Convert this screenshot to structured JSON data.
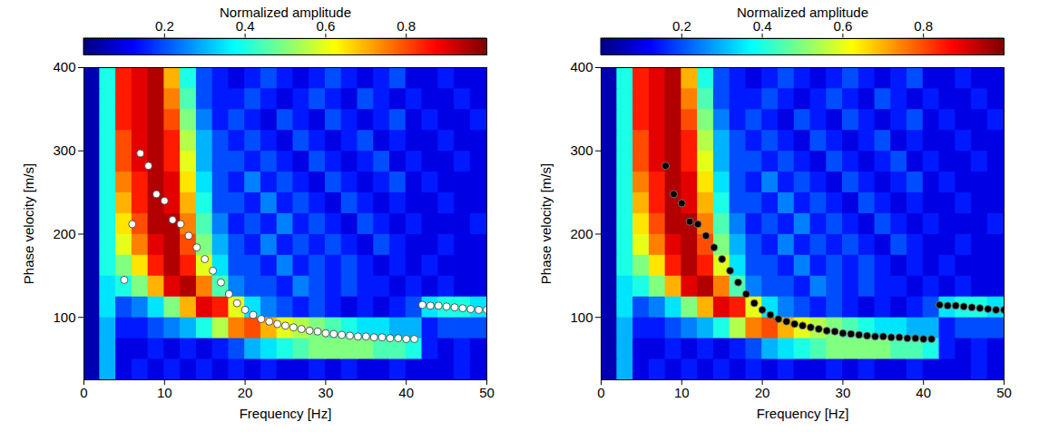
{
  "chart_data": [
    {
      "type": "heatmap",
      "x_label": "Frequency [Hz]",
      "y_label": "Phase velocity [m/s]",
      "xlim": [
        0,
        50
      ],
      "xticks": [
        0,
        10,
        20,
        30,
        40,
        50
      ],
      "ylim": [
        25,
        400
      ],
      "yticks": [
        100,
        200,
        300,
        400
      ],
      "grid": false,
      "colorbar": {
        "label": "Normalized amplitude",
        "lim": [
          0,
          1
        ],
        "ticks": [
          0.2,
          0.4,
          0.6,
          0.8
        ]
      },
      "heatmap": {
        "x_edges": [
          0,
          2,
          4,
          6,
          8,
          10,
          12,
          14,
          16,
          18,
          20,
          22,
          24,
          26,
          28,
          30,
          32,
          34,
          36,
          38,
          40,
          42,
          44,
          46,
          48,
          50
        ],
        "y_edges": [
          25,
          50,
          75,
          100,
          125,
          150,
          175,
          200,
          225,
          250,
          275,
          300,
          325,
          350,
          375,
          400
        ],
        "values": [
          [
            0.05,
            0.3,
            0.1,
            0.15,
            0.1,
            0.15,
            0.1,
            0.15,
            0.1,
            0.15,
            0.1,
            0.15,
            0.1,
            0.1,
            0.15,
            0.1,
            0.15,
            0.1,
            0.1,
            0.15,
            0.1,
            0.1,
            0.1,
            0.15,
            0.1
          ],
          [
            0.05,
            0.3,
            0.1,
            0.1,
            0.15,
            0.1,
            0.15,
            0.1,
            0.15,
            0.2,
            0.3,
            0.35,
            0.4,
            0.45,
            0.5,
            0.5,
            0.5,
            0.5,
            0.45,
            0.45,
            0.4,
            0.15,
            0.1,
            0.15,
            0.1
          ],
          [
            0.05,
            0.3,
            0.15,
            0.15,
            0.2,
            0.25,
            0.3,
            0.4,
            0.55,
            0.75,
            0.8,
            0.7,
            0.6,
            0.55,
            0.5,
            0.45,
            0.4,
            0.35,
            0.35,
            0.3,
            0.3,
            0.15,
            0.2,
            0.2,
            0.2
          ],
          [
            0.05,
            0.35,
            0.2,
            0.25,
            0.35,
            0.5,
            0.7,
            0.9,
            0.85,
            0.6,
            0.35,
            0.25,
            0.2,
            0.15,
            0.2,
            0.15,
            0.1,
            0.15,
            0.1,
            0.15,
            0.2,
            0.35,
            0.4,
            0.4,
            0.35
          ],
          [
            0.05,
            0.35,
            0.4,
            0.5,
            0.7,
            0.9,
            0.95,
            0.75,
            0.45,
            0.25,
            0.2,
            0.2,
            0.15,
            0.25,
            0.2,
            0.15,
            0.2,
            0.15,
            0.15,
            0.1,
            0.15,
            0.1,
            0.15,
            0.1,
            0.1
          ],
          [
            0.05,
            0.4,
            0.5,
            0.65,
            0.85,
            0.95,
            0.85,
            0.6,
            0.35,
            0.2,
            0.2,
            0.15,
            0.25,
            0.15,
            0.2,
            0.15,
            0.2,
            0.15,
            0.1,
            0.15,
            0.1,
            0.15,
            0.1,
            0.1,
            0.1
          ],
          [
            0.05,
            0.4,
            0.6,
            0.75,
            0.9,
            0.95,
            0.8,
            0.5,
            0.3,
            0.2,
            0.15,
            0.25,
            0.15,
            0.2,
            0.15,
            0.2,
            0.15,
            0.1,
            0.2,
            0.15,
            0.1,
            0.1,
            0.15,
            0.1,
            0.1
          ],
          [
            0.05,
            0.4,
            0.65,
            0.8,
            0.95,
            0.95,
            0.75,
            0.45,
            0.25,
            0.15,
            0.2,
            0.15,
            0.25,
            0.15,
            0.2,
            0.15,
            0.1,
            0.2,
            0.15,
            0.1,
            0.15,
            0.1,
            0.1,
            0.1,
            0.15
          ],
          [
            0.05,
            0.4,
            0.7,
            0.85,
            0.95,
            0.9,
            0.7,
            0.4,
            0.2,
            0.2,
            0.15,
            0.25,
            0.15,
            0.2,
            0.15,
            0.1,
            0.2,
            0.15,
            0.1,
            0.15,
            0.1,
            0.1,
            0.15,
            0.1,
            0.1
          ],
          [
            0.05,
            0.4,
            0.75,
            0.85,
            0.95,
            0.9,
            0.65,
            0.35,
            0.2,
            0.15,
            0.25,
            0.15,
            0.2,
            0.15,
            0.1,
            0.2,
            0.15,
            0.1,
            0.15,
            0.2,
            0.1,
            0.15,
            0.1,
            0.1,
            0.1
          ],
          [
            0.05,
            0.4,
            0.8,
            0.9,
            0.95,
            0.85,
            0.6,
            0.3,
            0.2,
            0.2,
            0.15,
            0.2,
            0.15,
            0.1,
            0.2,
            0.15,
            0.1,
            0.15,
            0.2,
            0.1,
            0.15,
            0.1,
            0.1,
            0.15,
            0.1
          ],
          [
            0.05,
            0.4,
            0.8,
            0.9,
            0.95,
            0.85,
            0.55,
            0.3,
            0.2,
            0.15,
            0.2,
            0.15,
            0.1,
            0.2,
            0.15,
            0.1,
            0.15,
            0.2,
            0.1,
            0.15,
            0.1,
            0.1,
            0.15,
            0.1,
            0.1
          ],
          [
            0.05,
            0.4,
            0.85,
            0.9,
            0.95,
            0.8,
            0.5,
            0.25,
            0.15,
            0.2,
            0.15,
            0.1,
            0.2,
            0.15,
            0.1,
            0.2,
            0.15,
            0.1,
            0.15,
            0.2,
            0.1,
            0.15,
            0.1,
            0.1,
            0.15
          ],
          [
            0.05,
            0.4,
            0.85,
            0.9,
            0.95,
            0.75,
            0.45,
            0.2,
            0.15,
            0.15,
            0.2,
            0.15,
            0.1,
            0.15,
            0.2,
            0.15,
            0.1,
            0.2,
            0.15,
            0.1,
            0.15,
            0.1,
            0.1,
            0.15,
            0.1
          ],
          [
            0.05,
            0.4,
            0.85,
            0.9,
            0.95,
            0.7,
            0.4,
            0.2,
            0.15,
            0.1,
            0.15,
            0.2,
            0.15,
            0.1,
            0.15,
            0.2,
            0.15,
            0.1,
            0.15,
            0.2,
            0.1,
            0.1,
            0.15,
            0.1,
            0.1
          ]
        ]
      },
      "series": [
        {
          "type": "scatter",
          "color": "#ffffff",
          "marker": "circle",
          "x": [
            5,
            6,
            7,
            8,
            9,
            10,
            11,
            12,
            13,
            14,
            15,
            16,
            17,
            18,
            19,
            20,
            21,
            22,
            23,
            24,
            25,
            26,
            27,
            28,
            29,
            30,
            31,
            32,
            33,
            34,
            35,
            36,
            37,
            38,
            39,
            40,
            41,
            42,
            43,
            44,
            45,
            46,
            47,
            48,
            49,
            50
          ],
          "values": [
            145,
            212,
            297,
            282,
            248,
            240,
            217,
            212,
            198,
            184,
            170,
            156,
            142,
            128,
            117,
            109,
            103,
            98,
            95,
            92,
            90,
            88,
            86,
            84,
            83,
            81,
            80,
            79,
            78,
            77,
            77,
            76,
            76,
            75,
            75,
            74,
            74,
            115,
            114,
            114,
            113,
            112,
            111,
            110,
            109,
            109
          ]
        }
      ]
    },
    {
      "type": "heatmap",
      "x_label": "Frequency [Hz]",
      "y_label": "Phase velocity [m/s]",
      "xlim": [
        0,
        50
      ],
      "xticks": [
        0,
        10,
        20,
        30,
        40,
        50
      ],
      "ylim": [
        25,
        400
      ],
      "yticks": [
        100,
        200,
        300,
        400
      ],
      "grid": false,
      "colorbar": {
        "label": "Normalized amplitude",
        "lim": [
          0,
          1
        ],
        "ticks": [
          0.2,
          0.4,
          0.6,
          0.8
        ]
      },
      "heatmap": {
        "x_edges": [
          0,
          2,
          4,
          6,
          8,
          10,
          12,
          14,
          16,
          18,
          20,
          22,
          24,
          26,
          28,
          30,
          32,
          34,
          36,
          38,
          40,
          42,
          44,
          46,
          48,
          50
        ],
        "y_edges": [
          25,
          50,
          75,
          100,
          125,
          150,
          175,
          200,
          225,
          250,
          275,
          300,
          325,
          350,
          375,
          400
        ],
        "values": [
          [
            0.05,
            0.3,
            0.1,
            0.15,
            0.1,
            0.15,
            0.1,
            0.15,
            0.1,
            0.15,
            0.1,
            0.15,
            0.1,
            0.1,
            0.15,
            0.1,
            0.15,
            0.1,
            0.1,
            0.15,
            0.1,
            0.1,
            0.1,
            0.15,
            0.1
          ],
          [
            0.05,
            0.3,
            0.1,
            0.1,
            0.15,
            0.1,
            0.15,
            0.1,
            0.15,
            0.2,
            0.3,
            0.35,
            0.4,
            0.45,
            0.5,
            0.5,
            0.5,
            0.5,
            0.45,
            0.45,
            0.4,
            0.15,
            0.1,
            0.15,
            0.1
          ],
          [
            0.05,
            0.3,
            0.15,
            0.15,
            0.2,
            0.25,
            0.3,
            0.4,
            0.55,
            0.75,
            0.8,
            0.7,
            0.6,
            0.55,
            0.5,
            0.45,
            0.4,
            0.35,
            0.35,
            0.3,
            0.3,
            0.15,
            0.2,
            0.2,
            0.2
          ],
          [
            0.05,
            0.35,
            0.2,
            0.25,
            0.35,
            0.5,
            0.7,
            0.9,
            0.85,
            0.6,
            0.35,
            0.25,
            0.2,
            0.15,
            0.2,
            0.15,
            0.1,
            0.15,
            0.1,
            0.15,
            0.2,
            0.35,
            0.4,
            0.4,
            0.35
          ],
          [
            0.05,
            0.35,
            0.4,
            0.5,
            0.7,
            0.9,
            0.95,
            0.75,
            0.45,
            0.25,
            0.2,
            0.2,
            0.15,
            0.25,
            0.2,
            0.15,
            0.2,
            0.15,
            0.15,
            0.1,
            0.15,
            0.1,
            0.15,
            0.1,
            0.1
          ],
          [
            0.05,
            0.4,
            0.5,
            0.65,
            0.85,
            0.95,
            0.85,
            0.6,
            0.35,
            0.2,
            0.2,
            0.15,
            0.25,
            0.15,
            0.2,
            0.15,
            0.2,
            0.15,
            0.1,
            0.15,
            0.1,
            0.15,
            0.1,
            0.1,
            0.1
          ],
          [
            0.05,
            0.4,
            0.6,
            0.75,
            0.9,
            0.95,
            0.8,
            0.5,
            0.3,
            0.2,
            0.15,
            0.25,
            0.15,
            0.2,
            0.15,
            0.2,
            0.15,
            0.1,
            0.2,
            0.15,
            0.1,
            0.1,
            0.15,
            0.1,
            0.1
          ],
          [
            0.05,
            0.4,
            0.65,
            0.8,
            0.95,
            0.95,
            0.75,
            0.45,
            0.25,
            0.15,
            0.2,
            0.15,
            0.25,
            0.15,
            0.2,
            0.15,
            0.1,
            0.2,
            0.15,
            0.1,
            0.15,
            0.1,
            0.1,
            0.1,
            0.15
          ],
          [
            0.05,
            0.4,
            0.7,
            0.85,
            0.95,
            0.9,
            0.7,
            0.4,
            0.2,
            0.2,
            0.15,
            0.25,
            0.15,
            0.2,
            0.15,
            0.1,
            0.2,
            0.15,
            0.1,
            0.15,
            0.1,
            0.1,
            0.15,
            0.1,
            0.1
          ],
          [
            0.05,
            0.4,
            0.75,
            0.85,
            0.95,
            0.9,
            0.65,
            0.35,
            0.2,
            0.15,
            0.25,
            0.15,
            0.2,
            0.15,
            0.1,
            0.2,
            0.15,
            0.1,
            0.15,
            0.2,
            0.1,
            0.15,
            0.1,
            0.1,
            0.1
          ],
          [
            0.05,
            0.4,
            0.8,
            0.9,
            0.95,
            0.85,
            0.6,
            0.3,
            0.2,
            0.2,
            0.15,
            0.2,
            0.15,
            0.1,
            0.2,
            0.15,
            0.1,
            0.15,
            0.2,
            0.1,
            0.15,
            0.1,
            0.1,
            0.15,
            0.1
          ],
          [
            0.05,
            0.4,
            0.8,
            0.9,
            0.95,
            0.85,
            0.55,
            0.3,
            0.2,
            0.15,
            0.2,
            0.15,
            0.1,
            0.2,
            0.15,
            0.1,
            0.15,
            0.2,
            0.1,
            0.15,
            0.1,
            0.1,
            0.15,
            0.1,
            0.1
          ],
          [
            0.05,
            0.4,
            0.85,
            0.9,
            0.95,
            0.8,
            0.5,
            0.25,
            0.15,
            0.2,
            0.15,
            0.1,
            0.2,
            0.15,
            0.1,
            0.2,
            0.15,
            0.1,
            0.15,
            0.2,
            0.1,
            0.15,
            0.1,
            0.1,
            0.15
          ],
          [
            0.05,
            0.4,
            0.85,
            0.9,
            0.95,
            0.75,
            0.45,
            0.2,
            0.15,
            0.15,
            0.2,
            0.15,
            0.1,
            0.15,
            0.2,
            0.15,
            0.1,
            0.2,
            0.15,
            0.1,
            0.15,
            0.1,
            0.1,
            0.15,
            0.1
          ],
          [
            0.05,
            0.4,
            0.85,
            0.9,
            0.95,
            0.7,
            0.4,
            0.2,
            0.15,
            0.1,
            0.15,
            0.2,
            0.15,
            0.1,
            0.15,
            0.2,
            0.15,
            0.1,
            0.15,
            0.2,
            0.1,
            0.1,
            0.15,
            0.1,
            0.1
          ]
        ]
      },
      "series": [
        {
          "type": "scatter",
          "color": "#000000",
          "marker": "circle",
          "x": [
            8,
            9,
            10,
            11,
            12,
            13,
            14,
            15,
            16,
            17,
            18,
            19,
            20,
            21,
            22,
            23,
            24,
            25,
            26,
            27,
            28,
            29,
            30,
            31,
            32,
            33,
            34,
            35,
            36,
            37,
            38,
            39,
            40,
            41,
            42,
            43,
            44,
            45,
            46,
            47,
            48,
            49,
            50
          ],
          "values": [
            282,
            248,
            237,
            215,
            212,
            198,
            184,
            170,
            156,
            142,
            128,
            117,
            109,
            103,
            98,
            95,
            92,
            90,
            88,
            86,
            84,
            83,
            81,
            80,
            79,
            78,
            77,
            77,
            76,
            76,
            75,
            75,
            74,
            74,
            115,
            114,
            114,
            113,
            112,
            111,
            110,
            109,
            109
          ]
        }
      ]
    }
  ]
}
